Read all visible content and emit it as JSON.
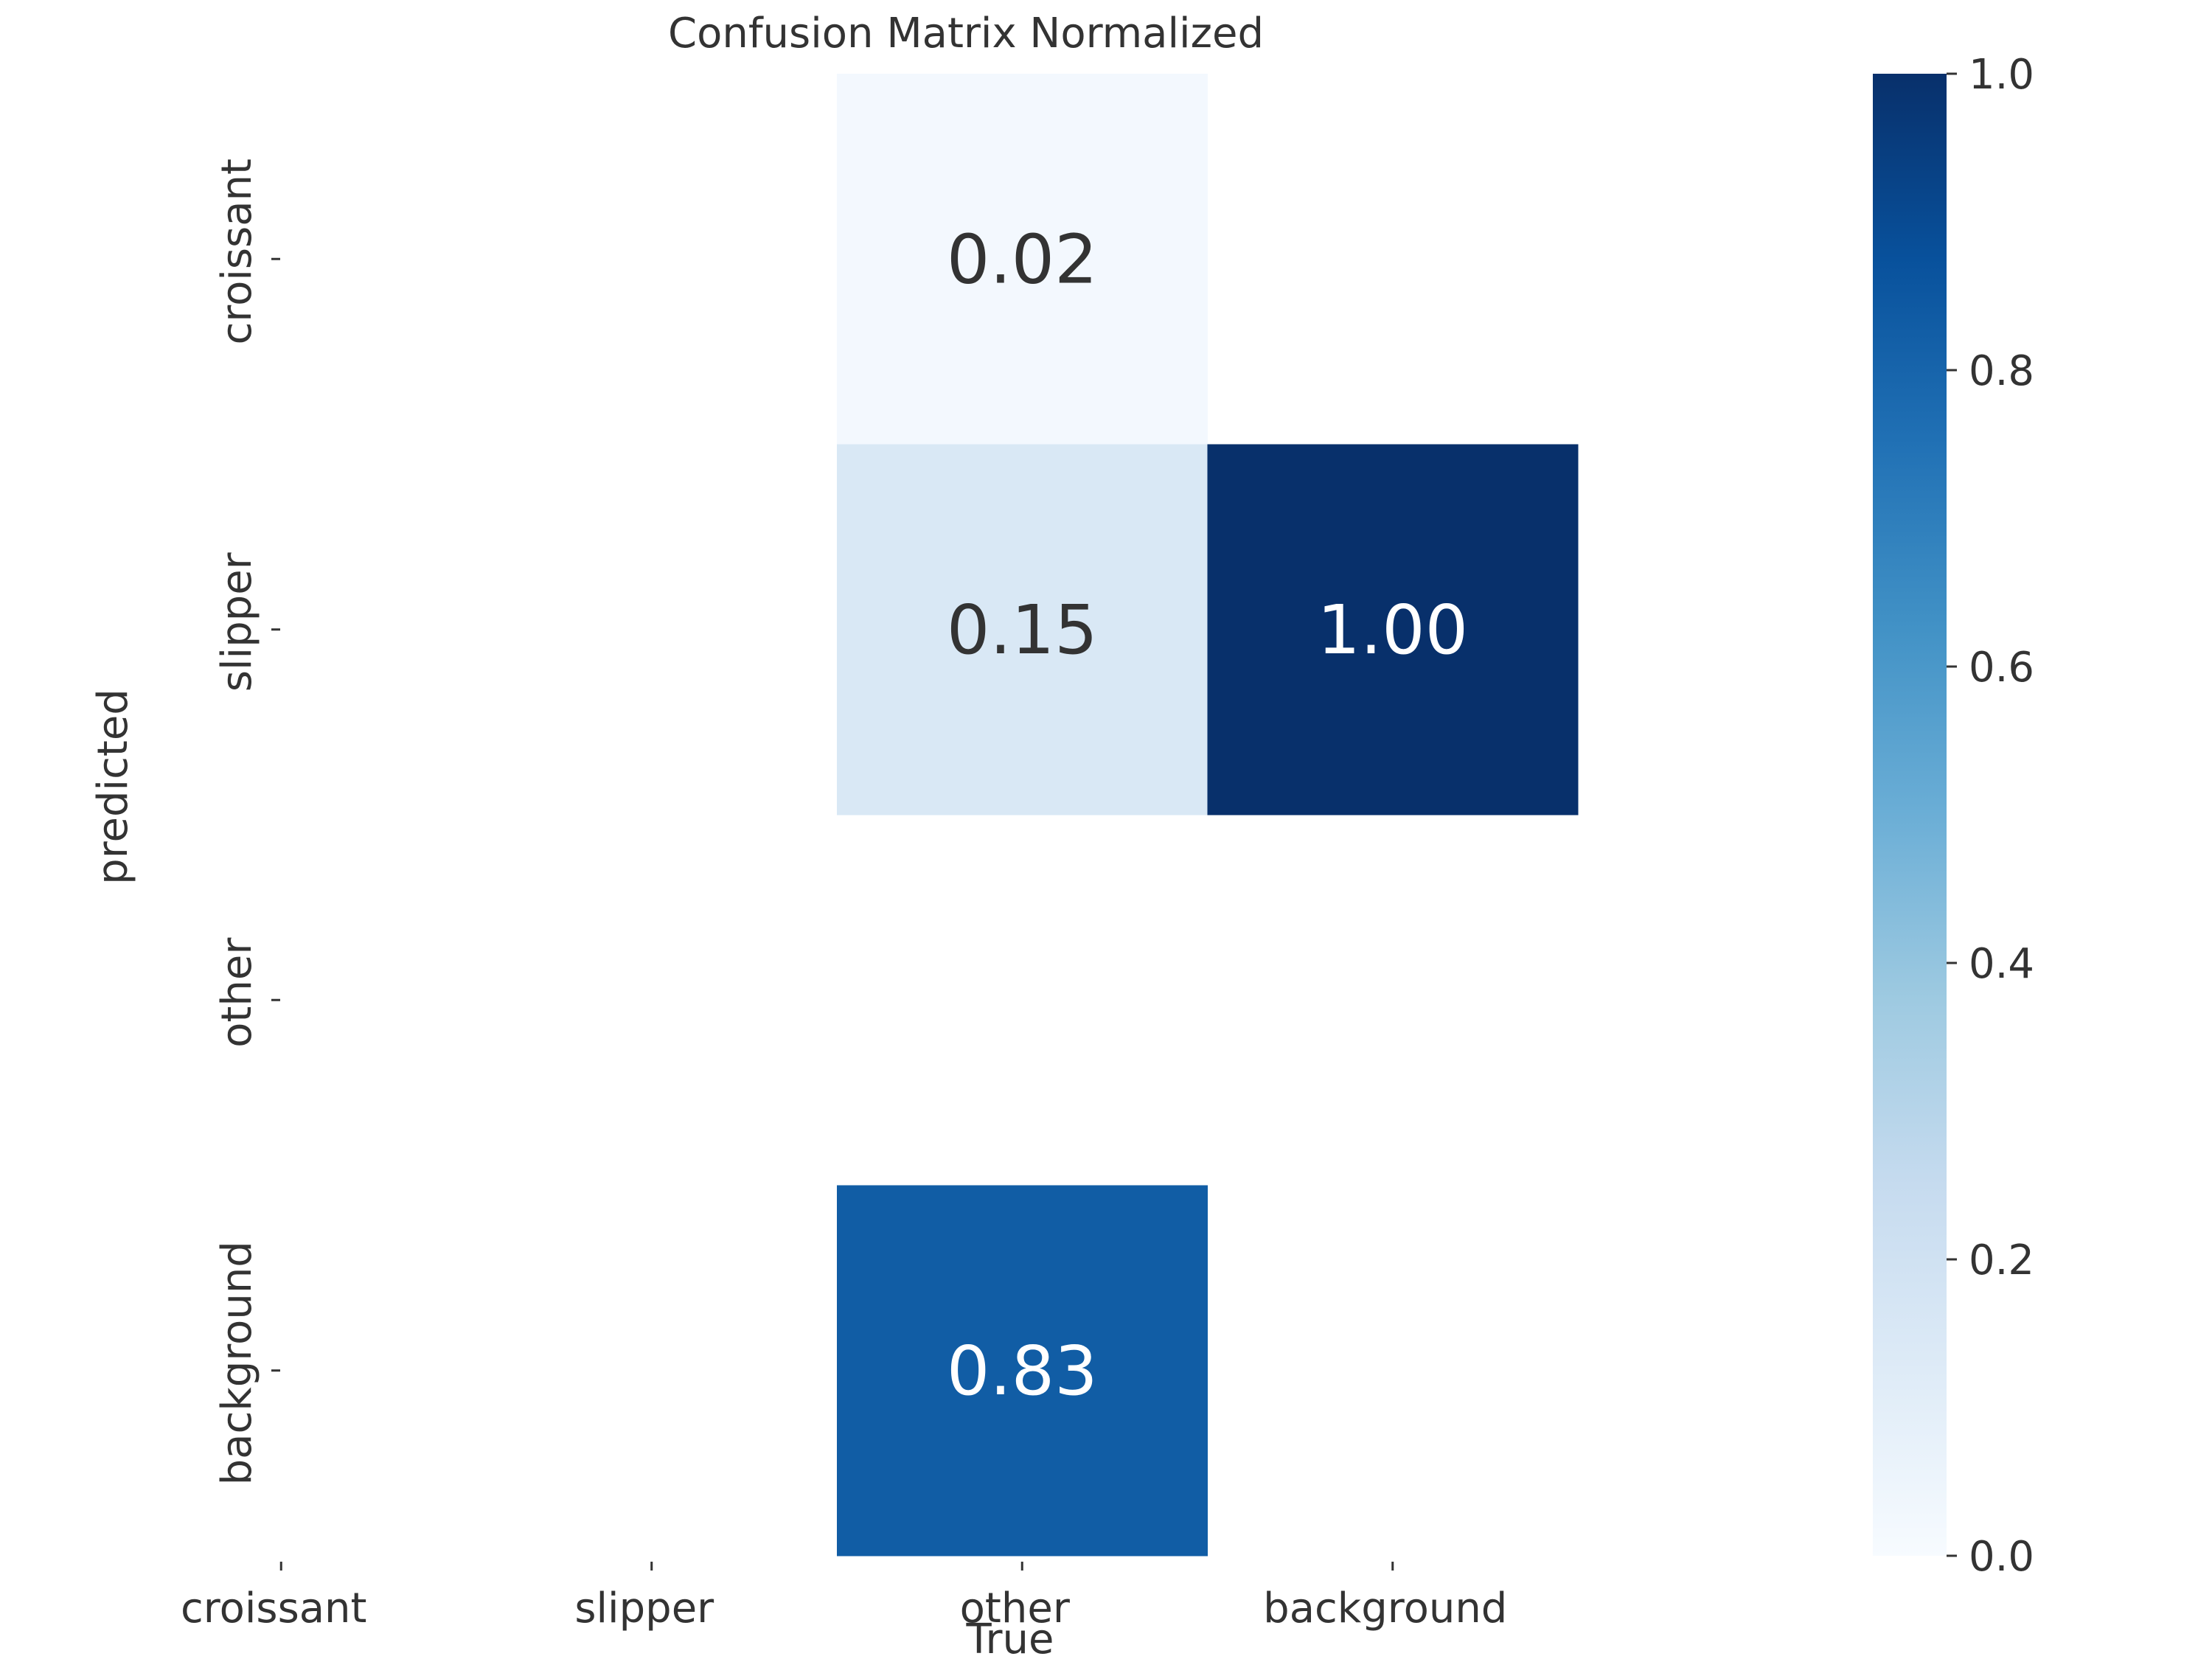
{
  "chart_data": {
    "type": "heatmap",
    "title": "Confusion Matrix Normalized",
    "xlabel": "True",
    "ylabel": "predicted",
    "x_categories": [
      "croissant",
      "slipper",
      "other",
      "background"
    ],
    "y_categories": [
      "croissant",
      "slipper",
      "other",
      "background"
    ],
    "values": [
      [
        null,
        null,
        0.02,
        null
      ],
      [
        null,
        null,
        0.15,
        1.0
      ],
      [
        null,
        null,
        null,
        null
      ],
      [
        null,
        null,
        0.83,
        null
      ]
    ],
    "value_format": "0.00",
    "colorbar": {
      "range": [
        0.0,
        1.0
      ],
      "ticks": [
        "0.0",
        "0.2",
        "0.4",
        "0.6",
        "0.8",
        "1.0"
      ],
      "colormap": "Blues",
      "colors": [
        "#f7fbff",
        "#deebf7",
        "#c6dbef",
        "#9ecae1",
        "#6baed6",
        "#4292c6",
        "#2171b5",
        "#08519c",
        "#08306b"
      ]
    },
    "grid": false
  }
}
